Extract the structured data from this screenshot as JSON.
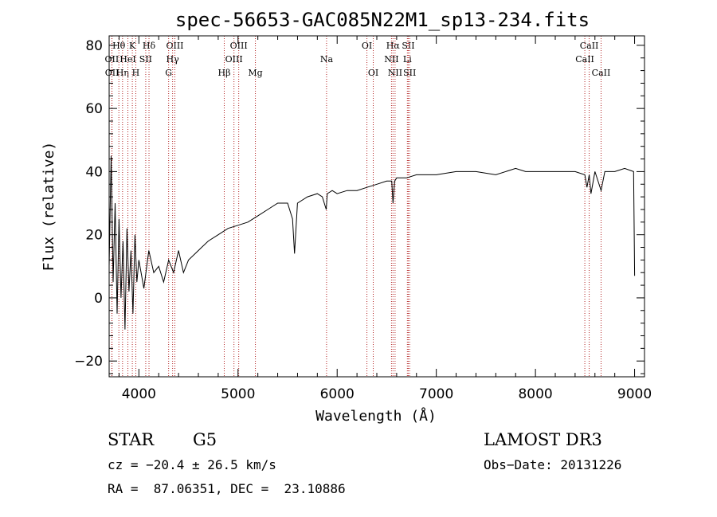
{
  "chart_data": {
    "type": "line",
    "title": "spec-56653-GAC085N22M1_sp13-234.fits",
    "xlabel": "Wavelength (Å)",
    "ylabel": "Flux (relative)",
    "xlim": [
      3700,
      9100
    ],
    "ylim": [
      -25,
      83
    ],
    "xticks": [
      4000,
      5000,
      6000,
      7000,
      8000,
      9000
    ],
    "yticks": [
      -20,
      0,
      20,
      40,
      60,
      80
    ],
    "xtick_labels": [
      "4000",
      "5000",
      "6000",
      "7000",
      "8000",
      "9000"
    ],
    "ytick_labels": [
      "−20",
      "0",
      "20",
      "40",
      "60",
      "80"
    ],
    "grid": false,
    "series": [
      {
        "name": "flux",
        "x": [
          3700,
          3720,
          3740,
          3760,
          3780,
          3800,
          3820,
          3840,
          3860,
          3880,
          3900,
          3920,
          3940,
          3960,
          3980,
          4000,
          4050,
          4100,
          4150,
          4200,
          4250,
          4300,
          4350,
          4400,
          4450,
          4500,
          4600,
          4700,
          4800,
          4900,
          5000,
          5100,
          5200,
          5300,
          5400,
          5500,
          5550,
          5570,
          5600,
          5700,
          5800,
          5850,
          5890,
          5900,
          5950,
          6000,
          6100,
          6200,
          6300,
          6400,
          6500,
          6550,
          6563,
          6580,
          6600,
          6700,
          6800,
          6900,
          7000,
          7200,
          7400,
          7600,
          7800,
          7900,
          8000,
          8200,
          8400,
          8498,
          8520,
          8542,
          8560,
          8600,
          8662,
          8700,
          8800,
          8900,
          8990,
          9000
        ],
        "y": [
          10,
          45,
          5,
          30,
          -5,
          25,
          0,
          18,
          -10,
          22,
          2,
          15,
          -5,
          20,
          5,
          12,
          3,
          15,
          8,
          10,
          5,
          12,
          8,
          15,
          8,
          12,
          15,
          18,
          20,
          22,
          23,
          24,
          26,
          28,
          30,
          30,
          25,
          14,
          30,
          32,
          33,
          32,
          28,
          33,
          34,
          33,
          34,
          34,
          35,
          36,
          37,
          37,
          30,
          37,
          38,
          38,
          39,
          39,
          39,
          40,
          40,
          39,
          41,
          40,
          40,
          40,
          40,
          39,
          35,
          39,
          33,
          40,
          34,
          40,
          40,
          41,
          40,
          7
        ]
      }
    ],
    "spectral_lines": [
      {
        "label": "Hθ",
        "x": 3798,
        "row": 0
      },
      {
        "label": "OII",
        "x": 3727,
        "row": 1
      },
      {
        "label": "OII",
        "x": 3729,
        "row": 2
      },
      {
        "label": "Hη",
        "x": 3835,
        "row": 2
      },
      {
        "label": "HeI",
        "x": 3889,
        "row": 1
      },
      {
        "label": "K",
        "x": 3934,
        "row": 0
      },
      {
        "label": "H",
        "x": 3969,
        "row": 2
      },
      {
        "label": "SII",
        "x": 4069,
        "row": 1
      },
      {
        "label": "Hδ",
        "x": 4102,
        "row": 0
      },
      {
        "label": "OIII",
        "x": 4363,
        "row": 0
      },
      {
        "label": "Hγ",
        "x": 4340,
        "row": 1
      },
      {
        "label": "G",
        "x": 4300,
        "row": 2
      },
      {
        "label": "Hβ",
        "x": 4861,
        "row": 2
      },
      {
        "label": "OIII",
        "x": 5007,
        "row": 0
      },
      {
        "label": "OIII",
        "x": 4959,
        "row": 1
      },
      {
        "label": "Mg",
        "x": 5175,
        "row": 2
      },
      {
        "label": "Na",
        "x": 5893,
        "row": 1
      },
      {
        "label": "OI",
        "x": 6300,
        "row": 0
      },
      {
        "label": "OI",
        "x": 6364,
        "row": 2
      },
      {
        "label": "Hα",
        "x": 6563,
        "row": 0
      },
      {
        "label": "NII",
        "x": 6548,
        "row": 1
      },
      {
        "label": "NII",
        "x": 6584,
        "row": 2
      },
      {
        "label": "SII",
        "x": 6717,
        "row": 0
      },
      {
        "label": "Li",
        "x": 6708,
        "row": 1
      },
      {
        "label": "SII",
        "x": 6731,
        "row": 2
      },
      {
        "label": "CaII",
        "x": 8542,
        "row": 0
      },
      {
        "label": "CaII",
        "x": 8498,
        "row": 1
      },
      {
        "label": "CaII",
        "x": 8662,
        "row": 2
      }
    ]
  },
  "info": {
    "object_class": "STAR",
    "subclass": "G5",
    "survey": "LAMOST DR3",
    "redshift": "cz = −20.4 ± 26.5 km/s",
    "obs_date": "Obs−Date: 20131226",
    "coords": "RA =  87.06351, DEC =  23.10886"
  },
  "colors": {
    "line_marker": "#b22222",
    "spectrum": "#000000"
  }
}
